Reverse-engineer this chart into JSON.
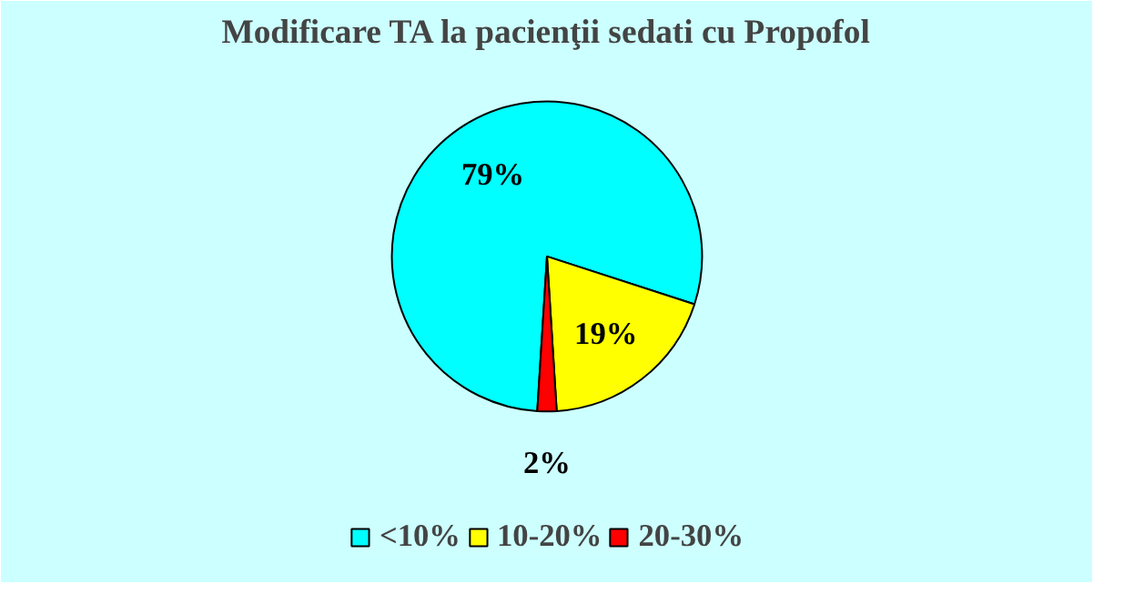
{
  "chart_data": {
    "type": "pie",
    "title": "Modificare TA la pacienţii sedati cu Propofol",
    "categories": [
      "<10%",
      "10-20%",
      "20-30%"
    ],
    "values": [
      79,
      19,
      2
    ],
    "colors": [
      "#00ffff",
      "#ffff00",
      "#ff0000"
    ],
    "value_labels": [
      "79%",
      "19%",
      "2%"
    ],
    "legend": "bottom"
  }
}
